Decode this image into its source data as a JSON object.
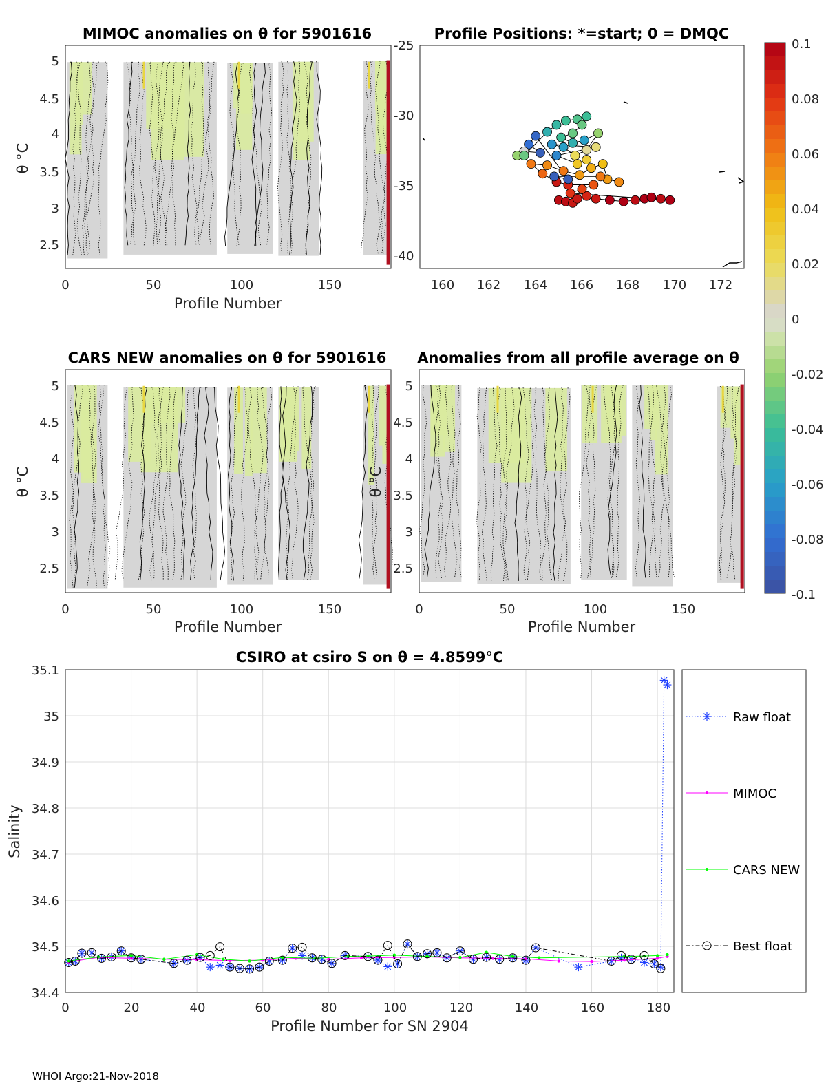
{
  "figure": {
    "footer": "WHOI Argo:21-Nov-2018"
  },
  "panels": {
    "mimoc": {
      "title": "MIMOC anomalies on θ  for 5901616",
      "xlabel": "Profile Number",
      "ylabel": "θ °C",
      "xticks": [
        "0",
        "50",
        "100",
        "150"
      ],
      "yticks": [
        "5",
        "4.5",
        "4",
        "3.5",
        "3",
        "2.5"
      ]
    },
    "positions": {
      "title": "Profile Positions: *=start; 0 = DMQC",
      "xticks": [
        "160",
        "162",
        "164",
        "166",
        "168",
        "170",
        "172"
      ],
      "yticks": [
        "-25",
        "-30",
        "-35",
        "-40"
      ]
    },
    "cars": {
      "title": "CARS NEW anomalies on θ for 5901616",
      "xlabel": "Profile Number",
      "ylabel": "θ °C",
      "xticks": [
        "0",
        "50",
        "100",
        "150"
      ],
      "yticks": [
        "5",
        "4.5",
        "4",
        "3.5",
        "3",
        "2.5"
      ]
    },
    "allavg": {
      "title": "Anomalies from all profile average on θ",
      "xlabel": "Profile Number",
      "ylabel": "θ °C",
      "xticks": [
        "0",
        "50",
        "100",
        "150"
      ],
      "yticks": [
        "5",
        "4.5",
        "4",
        "3.5",
        "3",
        "2.5"
      ]
    },
    "colorbar": {
      "ticks": [
        "0.1",
        "0.08",
        "0.06",
        "0.04",
        "0.02",
        "0",
        "-0.02",
        "-0.04",
        "-0.06",
        "-0.08",
        "-0.1"
      ]
    },
    "salinity": {
      "title": "CSIRO at csiro S on θ = 4.8599°C",
      "xlabel": "Profile Number for SN 2904",
      "ylabel": "Salinity",
      "xticks": [
        "0",
        "20",
        "40",
        "60",
        "80",
        "100",
        "120",
        "140",
        "160",
        "180"
      ],
      "yticks": [
        "35.1",
        "35",
        "34.9",
        "34.8",
        "34.7",
        "34.6",
        "34.5",
        "34.4"
      ],
      "legend": [
        "Raw float",
        "MIMOC",
        "CARS NEW",
        "Best float"
      ]
    }
  },
  "colors": {
    "raw": "#1f3fff",
    "mimoc": "#ff00ff",
    "cars": "#00ff00",
    "best": "#000000",
    "anomaly_bg": "#d6d6d6",
    "anomaly_pos": "#d9eb9e"
  },
  "chart_data": [
    {
      "type": "heatmap",
      "name": "mimoc",
      "title": "MIMOC anomalies on θ  for 5901616",
      "xlabel": "Profile Number",
      "ylabel": "θ °C",
      "xlim": [
        0,
        185
      ],
      "ylim": [
        2.2,
        5.2
      ],
      "color_range": [
        -0.1,
        0.1
      ],
      "blocks": [
        [
          1,
          24
        ],
        [
          33,
          86
        ],
        [
          92,
          118
        ],
        [
          121,
          144
        ],
        [
          169,
          184
        ]
      ]
    },
    {
      "type": "scatter",
      "name": "positions",
      "title": "Profile Positions: *=start; 0 = DMQC",
      "xlim": [
        159,
        173
      ],
      "ylim": [
        -41,
        -25
      ],
      "points": [
        [
          165.0,
          -36.1,
          0.095
        ],
        [
          165.3,
          -36.2,
          0.095
        ],
        [
          165.6,
          -36.3,
          0.09
        ],
        [
          165.8,
          -36.0,
          0.09
        ],
        [
          166.2,
          -35.8,
          0.085
        ],
        [
          166.6,
          -36.0,
          0.09
        ],
        [
          167.2,
          -36.1,
          0.1
        ],
        [
          167.8,
          -36.2,
          0.1
        ],
        [
          168.3,
          -36.1,
          0.095
        ],
        [
          168.7,
          -36.0,
          0.1
        ],
        [
          169.0,
          -35.9,
          0.1
        ],
        [
          169.4,
          -36.0,
          0.095
        ],
        [
          169.8,
          -36.1,
          0.1
        ],
        [
          165.5,
          -35.6,
          0.08
        ],
        [
          166.0,
          -35.3,
          0.075
        ],
        [
          166.5,
          -35.0,
          0.07
        ],
        [
          165.4,
          -35.0,
          0.085
        ],
        [
          164.9,
          -34.8,
          0.09
        ],
        [
          164.3,
          -34.2,
          0.065
        ],
        [
          163.8,
          -33.5,
          0.06
        ],
        [
          164.5,
          -33.6,
          0.055
        ],
        [
          165.2,
          -34.0,
          0.06
        ],
        [
          165.9,
          -34.3,
          0.05
        ],
        [
          166.4,
          -33.8,
          0.045
        ],
        [
          166.9,
          -33.5,
          0.04
        ],
        [
          167.1,
          -34.6,
          0.05
        ],
        [
          167.6,
          -34.8,
          0.055
        ],
        [
          166.8,
          -34.4,
          0.06
        ],
        [
          164.8,
          -34.4,
          -0.09
        ],
        [
          165.4,
          -34.6,
          -0.09
        ],
        [
          164.0,
          -31.5,
          -0.085
        ],
        [
          163.7,
          -32.1,
          -0.08
        ],
        [
          164.2,
          -32.7,
          -0.09
        ],
        [
          163.5,
          -32.6,
          0.0
        ],
        [
          163.2,
          -32.9,
          -0.02
        ],
        [
          163.5,
          -32.9,
          -0.03
        ],
        [
          164.5,
          -31.2,
          -0.05
        ],
        [
          164.9,
          -30.7,
          -0.045
        ],
        [
          165.3,
          -30.4,
          -0.04
        ],
        [
          165.8,
          -30.3,
          -0.035
        ],
        [
          166.2,
          -30.1,
          -0.04
        ],
        [
          166.0,
          -30.7,
          -0.03
        ],
        [
          165.6,
          -31.3,
          -0.03
        ],
        [
          165.1,
          -31.6,
          -0.04
        ],
        [
          165.6,
          -32.0,
          -0.05
        ],
        [
          166.1,
          -31.8,
          -0.06
        ],
        [
          166.7,
          -31.3,
          -0.02
        ],
        [
          166.2,
          -32.5,
          0.01
        ],
        [
          165.7,
          -32.9,
          0.02
        ],
        [
          165.2,
          -32.3,
          -0.06
        ],
        [
          164.7,
          -32.1,
          -0.065
        ],
        [
          166.6,
          -32.3,
          0.015
        ],
        [
          164.9,
          -32.9,
          -0.07
        ],
        [
          165.8,
          -33.5,
          0.035
        ],
        [
          166.2,
          -33.2,
          0.03
        ]
      ]
    },
    {
      "type": "heatmap",
      "name": "cars",
      "title": "CARS NEW anomalies on θ for 5901616",
      "xlabel": "Profile Number",
      "ylabel": "θ °C",
      "xlim": [
        0,
        185
      ],
      "ylim": [
        2.2,
        5.2
      ],
      "color_range": [
        -0.1,
        0.1
      ],
      "blocks": [
        [
          1,
          24
        ],
        [
          33,
          86
        ],
        [
          92,
          118
        ],
        [
          121,
          144
        ],
        [
          169,
          184
        ]
      ]
    },
    {
      "type": "heatmap",
      "name": "allavg",
      "title": "Anomalies from all profile average on θ",
      "xlabel": "Profile Number",
      "ylabel": "θ °C",
      "xlim": [
        0,
        185
      ],
      "ylim": [
        2.2,
        5.2
      ],
      "color_range": [
        -0.1,
        0.1
      ],
      "blocks": [
        [
          1,
          24
        ],
        [
          33,
          86
        ],
        [
          92,
          118
        ],
        [
          121,
          144
        ],
        [
          169,
          184
        ]
      ]
    },
    {
      "type": "line",
      "name": "salinity",
      "title": "CSIRO at csiro S on θ = 4.8599°C",
      "xlabel": "Profile Number for SN 2904",
      "ylabel": "Salinity",
      "xlim": [
        0,
        185
      ],
      "ylim": [
        34.4,
        35.1
      ],
      "series": [
        {
          "name": "Raw float",
          "marker": "asterisk",
          "line": "dotted",
          "x": [
            1,
            3,
            5,
            8,
            11,
            14,
            17,
            20,
            23,
            33,
            37,
            41,
            44,
            47,
            50,
            53,
            56,
            59,
            62,
            66,
            69,
            72,
            75,
            78,
            81,
            85,
            92,
            95,
            98,
            101,
            104,
            107,
            110,
            113,
            116,
            120,
            124,
            128,
            132,
            136,
            140,
            143,
            156,
            166,
            169,
            172,
            176,
            179,
            181,
            182,
            183
          ],
          "y": [
            34.465,
            34.468,
            34.485,
            34.486,
            34.474,
            34.477,
            34.49,
            34.475,
            34.472,
            34.463,
            34.47,
            34.476,
            34.455,
            34.459,
            34.455,
            34.452,
            34.451,
            34.455,
            34.468,
            34.47,
            34.496,
            34.48,
            34.475,
            34.472,
            34.463,
            34.48,
            34.478,
            34.47,
            34.456,
            34.462,
            34.505,
            34.478,
            34.484,
            34.486,
            34.475,
            34.49,
            34.472,
            34.476,
            34.472,
            34.475,
            34.47,
            34.497,
            34.455,
            34.468,
            34.475,
            34.472,
            34.465,
            34.462,
            34.455,
            35.077,
            35.067
          ]
        },
        {
          "name": "MIMOC",
          "marker": "dot",
          "line": "solid",
          "x": [
            1,
            10,
            20,
            30,
            40,
            50,
            60,
            70,
            80,
            90,
            100,
            110,
            120,
            130,
            140,
            150,
            160,
            170,
            180,
            183
          ],
          "y": [
            34.466,
            34.476,
            34.474,
            34.472,
            34.471,
            34.469,
            34.47,
            34.474,
            34.472,
            34.475,
            34.476,
            34.477,
            34.475,
            34.474,
            34.473,
            34.468,
            34.467,
            34.47,
            34.474,
            34.478
          ]
        },
        {
          "name": "CARS NEW",
          "marker": "dot",
          "line": "solid",
          "x": [
            1,
            10,
            20,
            30,
            40,
            48,
            56,
            66,
            76,
            86,
            92,
            100,
            110,
            120,
            128,
            136,
            144,
            170,
            176,
            180,
            183
          ],
          "y": [
            34.468,
            34.477,
            34.48,
            34.472,
            34.482,
            34.472,
            34.468,
            34.476,
            34.474,
            34.478,
            34.479,
            34.481,
            34.478,
            34.476,
            34.487,
            34.478,
            34.475,
            34.478,
            34.479,
            34.48,
            34.482
          ]
        },
        {
          "name": "Best float",
          "marker": "circle",
          "line": "dashdot",
          "x": [
            1,
            3,
            5,
            8,
            11,
            14,
            17,
            20,
            23,
            33,
            37,
            41,
            44,
            47,
            50,
            53,
            56,
            59,
            62,
            66,
            69,
            72,
            75,
            78,
            81,
            85,
            92,
            95,
            98,
            101,
            104,
            107,
            110,
            113,
            116,
            120,
            124,
            128,
            132,
            136,
            140,
            143,
            166,
            169,
            172,
            176,
            179,
            181
          ],
          "y": [
            34.465,
            34.468,
            34.485,
            34.486,
            34.474,
            34.477,
            34.49,
            34.475,
            34.472,
            34.463,
            34.47,
            34.476,
            34.48,
            34.499,
            34.455,
            34.452,
            34.451,
            34.455,
            34.468,
            34.47,
            34.496,
            34.498,
            34.475,
            34.472,
            34.463,
            34.48,
            34.478,
            34.47,
            34.502,
            34.462,
            34.505,
            34.478,
            34.484,
            34.486,
            34.475,
            34.49,
            34.472,
            34.476,
            34.472,
            34.475,
            34.47,
            34.497,
            34.468,
            34.48,
            34.472,
            34.48,
            34.462,
            34.452
          ]
        }
      ],
      "legend": [
        "Raw float",
        "MIMOC",
        "CARS NEW",
        "Best float"
      ],
      "grid": true
    }
  ]
}
